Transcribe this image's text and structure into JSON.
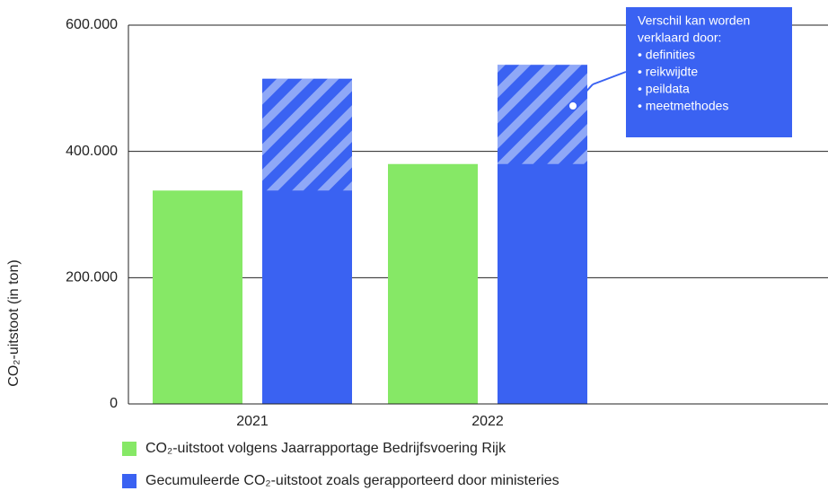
{
  "chart_data": {
    "type": "bar",
    "y_label": "CO₂-uitstoot (in ton)",
    "categories": [
      "2021",
      "2022"
    ],
    "series": [
      {
        "name": "CO₂-uitstoot volgens Jaarrapportage Bedrijfsvoering Rijk",
        "color": "#86e866",
        "values": [
          338000,
          380000
        ]
      },
      {
        "name": "Gecumuleerde CO₂-uitstoot zoals gerapporteerd door ministeries",
        "color": "#3a62f2",
        "values": [
          515000,
          537000
        ]
      }
    ],
    "ylim": [
      0,
      600000
    ],
    "yticks": [
      0,
      {
        "value": 200000,
        "label": "200.000"
      },
      {
        "value": 400000,
        "label": "400.000"
      },
      {
        "value": 600000,
        "label": "600.000"
      }
    ],
    "grid": true,
    "annotation": [
      "Verschil kan worden",
      "verklaard door:",
      "• definities",
      "• reikwijdte",
      "• peildata",
      "• meetmethodes"
    ]
  }
}
